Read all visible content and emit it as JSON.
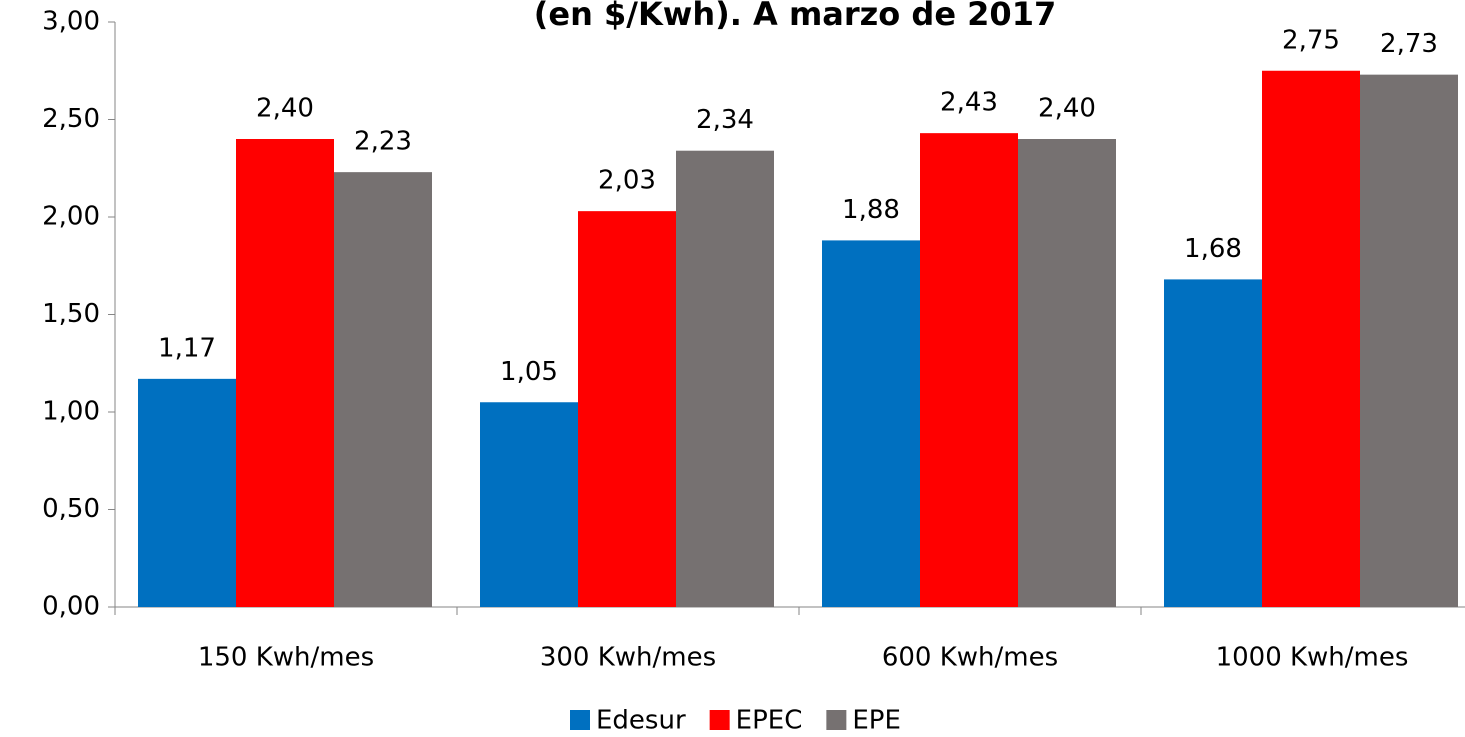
{
  "chart_data": {
    "type": "bar",
    "title": "(en $/Kwh). A marzo de 2017",
    "categories": [
      "150 Kwh/mes",
      "300 Kwh/mes",
      "600 Kwh/mes",
      "1000 Kwh/mes"
    ],
    "series": [
      {
        "name": "Edesur",
        "color": "#0070c0",
        "values": [
          1.17,
          1.05,
          1.88,
          1.68
        ],
        "value_labels": [
          "1,17",
          "1,05",
          "1,88",
          "1,68"
        ]
      },
      {
        "name": "EPEC",
        "color": "#ff0000",
        "values": [
          2.4,
          2.03,
          2.43,
          2.75
        ],
        "value_labels": [
          "2,40",
          "2,03",
          "2,43",
          "2,75"
        ]
      },
      {
        "name": "EPE",
        "color": "#767171",
        "values": [
          2.23,
          2.34,
          2.4,
          2.73
        ],
        "value_labels": [
          "2,23",
          "2,34",
          "2,40",
          "2,73"
        ]
      }
    ],
    "ylim": [
      0,
      3
    ],
    "yticks": [
      {
        "value": 0,
        "label": "0,00"
      },
      {
        "value": 0.5,
        "label": "0,50"
      },
      {
        "value": 1,
        "label": "1,00"
      },
      {
        "value": 1.5,
        "label": "1,50"
      },
      {
        "value": 2,
        "label": "2,00"
      },
      {
        "value": 2.5,
        "label": "2,50"
      },
      {
        "value": 3,
        "label": "3,00"
      }
    ],
    "legend": "bottom"
  }
}
